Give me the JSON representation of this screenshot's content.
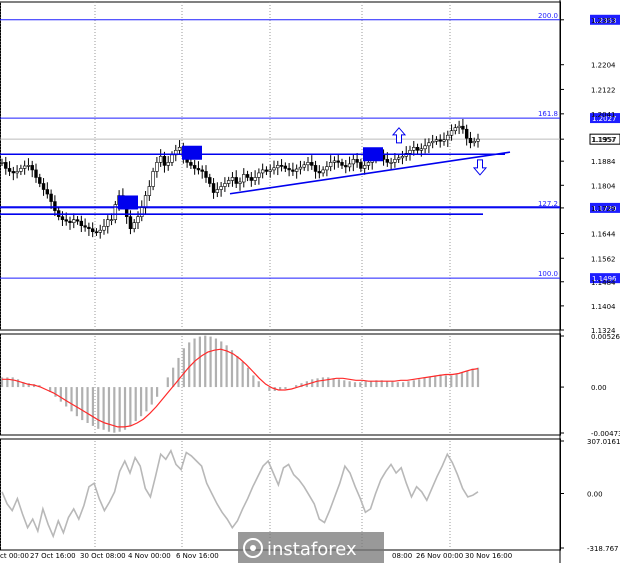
{
  "chart_data": {
    "type": "candlestick",
    "instrument": "",
    "price_axis": {
      "min": 1.1324,
      "max": 1.2412,
      "ticks": [
        "1.2353",
        "1.2204",
        "1.2122",
        "1.2041",
        "1.1957",
        "1.1884",
        "1.1804",
        "1.1729",
        "1.1644",
        "1.1562",
        "1.1484",
        "1.1404",
        "1.1324"
      ]
    },
    "levels": [
      {
        "label_left": "200.0",
        "label_right": "1.2353",
        "price": 1.2353,
        "color": "#1e1eff"
      },
      {
        "label_left": "161.8",
        "label_right": "1.2027",
        "price": 1.2027,
        "color": "#1e1eff"
      },
      {
        "label_left": "127.2",
        "label_right": "1.1729",
        "price": 1.1729,
        "color": "#1e1eff"
      },
      {
        "label_left": "100.0",
        "label_right": "1.1496",
        "price": 1.1496,
        "color": "#1e1eff"
      }
    ],
    "current_price": "1.1957",
    "horizontal_lines": [
      {
        "price": 1.1907,
        "x_start": 0,
        "x_end": 505
      },
      {
        "price": 1.1732,
        "x_start": 0,
        "x_end": 560
      },
      {
        "price": 1.1708,
        "x_start": 0,
        "x_end": 483
      }
    ],
    "trend_line": {
      "from": {
        "x": 230,
        "price": 1.1776
      },
      "to": {
        "x": 510,
        "price": 1.1914
      }
    },
    "markers": [
      {
        "type": "box",
        "x": 128,
        "price": 1.1747
      },
      {
        "type": "box",
        "x": 192,
        "price": 1.1912
      },
      {
        "type": "box",
        "x": 373,
        "price": 1.1907
      },
      {
        "type": "arrow-up",
        "x": 399,
        "price": 1.1968
      },
      {
        "type": "arrow-down",
        "x": 480,
        "price": 1.1865
      }
    ],
    "x_labels": [
      "ct 00:00",
      "27 Oct 16:00",
      "30 Oct 08:00",
      "4 Nov 00:00",
      "6 Nov 16:00",
      "08:00",
      "26 Nov 00:00",
      "30 Nov 16:00"
    ],
    "close_series": [
      1.188,
      1.186,
      1.185,
      1.1845,
      1.185,
      1.186,
      1.1868,
      1.187,
      1.1855,
      1.183,
      1.181,
      1.179,
      1.1775,
      1.175,
      1.172,
      1.17,
      1.169,
      1.1685,
      1.168,
      1.169,
      1.1685,
      1.167,
      1.1665,
      1.166,
      1.165,
      1.1648,
      1.1655,
      1.1668,
      1.169,
      1.169,
      1.174,
      1.177,
      1.175,
      1.17,
      1.166,
      1.168,
      1.17,
      1.173,
      1.177,
      1.18,
      1.185,
      1.188,
      1.19,
      1.187,
      1.188,
      1.1905,
      1.192,
      1.193,
      1.19,
      1.188,
      1.187,
      1.186,
      1.1855,
      1.185,
      1.183,
      1.181,
      1.178,
      1.179,
      1.18,
      1.181,
      1.182,
      1.183,
      1.181,
      1.1815,
      1.184,
      1.183,
      1.182,
      1.183,
      1.1845,
      1.1855,
      1.185,
      1.1855,
      1.1862,
      1.187,
      1.1868,
      1.186,
      1.1855,
      1.185,
      1.1858,
      1.1864,
      1.1872,
      1.188,
      1.187,
      1.185,
      1.1845,
      1.1855,
      1.1866,
      1.188,
      1.1885,
      1.188,
      1.187,
      1.1865,
      1.1875,
      1.189,
      1.188,
      1.186,
      1.187,
      1.188,
      1.1895,
      1.1905,
      1.1905,
      1.189,
      1.188,
      1.188,
      1.189,
      1.1895,
      1.19,
      1.191,
      1.192,
      1.193,
      1.192,
      1.1925,
      1.1935,
      1.1945,
      1.195,
      1.1955,
      1.195,
      1.1955,
      1.197,
      1.1985,
      1.1995,
      1.2,
      1.199,
      1.196,
      1.1945,
      1.195,
      1.1957
    ],
    "macd": {
      "axis_labels": [
        "0.00526",
        "0.00",
        "-0.00473"
      ],
      "max": 0.00526,
      "min": -0.00473,
      "histogram": [
        0.001,
        0.001,
        0.001,
        0.0008,
        0.0005,
        0.0004,
        0.0003,
        0.0002,
        0.0,
        -0.0005,
        -0.001,
        -0.0015,
        -0.002,
        -0.0025,
        -0.003,
        -0.0034,
        -0.0037,
        -0.004,
        -0.0043,
        -0.0044,
        -0.0046,
        -0.0047,
        -0.0046,
        -0.0044,
        -0.004,
        -0.0035,
        -0.003,
        -0.0025,
        -0.0018,
        -0.001,
        0.0,
        0.001,
        0.002,
        0.003,
        0.004,
        0.0046,
        0.005,
        0.0052,
        0.0053,
        0.0052,
        0.005,
        0.0047,
        0.0043,
        0.0038,
        0.0032,
        0.0026,
        0.002,
        0.0012,
        0.0006,
        0.0,
        -0.0004,
        -0.0004,
        -0.0003,
        -0.0002,
        0.0,
        0.0002,
        0.0004,
        0.0006,
        0.0008,
        0.0009,
        0.001,
        0.001,
        0.0009,
        0.0008,
        0.0007,
        0.0006,
        0.0005,
        0.0005,
        0.0006,
        0.0006,
        0.0007,
        0.0007,
        0.0006,
        0.0006,
        0.0005,
        0.0005,
        0.0006,
        0.0007,
        0.0008,
        0.001,
        0.0011,
        0.0012,
        0.0013,
        0.0012,
        0.0012,
        0.0013,
        0.0015,
        0.0017,
        0.0019,
        0.002
      ],
      "signal": [
        0.0008,
        0.0008,
        0.0007,
        0.0005,
        0.0003,
        0.0002,
        0.0,
        -0.0003,
        -0.0006,
        -0.001,
        -0.0014,
        -0.0018,
        -0.0022,
        -0.0026,
        -0.003,
        -0.0034,
        -0.0037,
        -0.0039,
        -0.0041,
        -0.0041,
        -0.004,
        -0.0037,
        -0.0033,
        -0.0027,
        -0.002,
        -0.0012,
        -0.0004,
        0.0004,
        0.0012,
        0.002,
        0.0027,
        0.0032,
        0.0036,
        0.0038,
        0.0039,
        0.0037,
        0.0034,
        0.0029,
        0.0023,
        0.0016,
        0.0009,
        0.0003,
        -0.0001,
        -0.0003,
        -0.0003,
        -0.0002,
        0.0,
        0.0002,
        0.0004,
        0.0006,
        0.0007,
        0.0008,
        0.0009,
        0.0009,
        0.0008,
        0.0007,
        0.0007,
        0.0006,
        0.0006,
        0.0006,
        0.0006,
        0.0006,
        0.0007,
        0.0007,
        0.0008,
        0.0009,
        0.001,
        0.0011,
        0.0012,
        0.0013,
        0.0013,
        0.0014,
        0.0016,
        0.0018,
        0.0019
      ]
    },
    "cci": {
      "axis_labels": [
        "307.0161",
        "0.00",
        "-318.767"
      ],
      "max": 307.0161,
      "min": -318.767,
      "values": [
        10,
        -60,
        -100,
        -30,
        -120,
        -200,
        -150,
        -220,
        -90,
        -180,
        -250,
        -160,
        -230,
        -140,
        -90,
        -150,
        -70,
        40,
        60,
        -30,
        -100,
        -50,
        10,
        130,
        190,
        120,
        210,
        160,
        30,
        -20,
        100,
        230,
        200,
        250,
        170,
        140,
        240,
        220,
        190,
        160,
        60,
        0,
        -60,
        -110,
        -150,
        -200,
        -160,
        -90,
        -30,
        40,
        100,
        160,
        190,
        120,
        50,
        150,
        170,
        110,
        80,
        40,
        -10,
        -60,
        -150,
        -170,
        -100,
        -20,
        60,
        160,
        120,
        40,
        -30,
        -110,
        -90,
        0,
        80,
        130,
        170,
        120,
        150,
        60,
        -20,
        40,
        10,
        -40,
        30,
        100,
        160,
        230,
        180,
        110,
        30,
        -20,
        -10,
        10
      ]
    }
  }
}
